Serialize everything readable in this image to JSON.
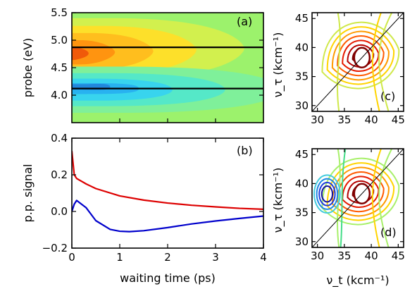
{
  "chart_data": [
    {
      "panel": "(a)",
      "type": "heatmap",
      "xlim": [
        0,
        4
      ],
      "ylim": [
        3.5,
        5.5
      ],
      "yticks": [
        "4.0",
        "4.5",
        "5.0",
        "5.5"
      ],
      "ylabel": "probe (eV)",
      "probe_lines": [
        4.87,
        4.12
      ],
      "colors": {
        "background": "#9cf26c",
        "positive_max": "#f05a0a",
        "negative_min": "#2288dd"
      }
    },
    {
      "panel": "(b)",
      "type": "line",
      "xlim": [
        0,
        4
      ],
      "ylim": [
        -0.2,
        0.4
      ],
      "xticks": [
        "0",
        "1",
        "2",
        "3",
        "4"
      ],
      "yticks": [
        "−0.2",
        "0.0",
        "0.2",
        "0.4"
      ],
      "xlabel": "waiting time (ps)",
      "ylabel": "p.p. signal",
      "series": [
        {
          "color": "#dd0000",
          "x": [
            0,
            0.05,
            0.1,
            0.3,
            0.5,
            1.0,
            1.5,
            2.0,
            2.5,
            3.0,
            3.5,
            4.0
          ],
          "y": [
            0.33,
            0.2,
            0.18,
            0.15,
            0.125,
            0.085,
            0.062,
            0.046,
            0.034,
            0.025,
            0.017,
            0.012
          ]
        },
        {
          "color": "#0000cc",
          "x": [
            0,
            0.05,
            0.1,
            0.3,
            0.5,
            0.8,
            1.0,
            1.2,
            1.5,
            2.0,
            2.5,
            3.0,
            3.5,
            4.0
          ],
          "y": [
            0.0,
            0.04,
            0.06,
            0.02,
            -0.05,
            -0.098,
            -0.108,
            -0.11,
            -0.105,
            -0.088,
            -0.068,
            -0.052,
            -0.038,
            -0.025
          ]
        }
      ]
    },
    {
      "panel": "(c)",
      "type": "contour",
      "xlim": [
        29,
        46
      ],
      "ylim": [
        29,
        46
      ],
      "xticks": [
        "30",
        "35",
        "40",
        "45"
      ],
      "yticks": [
        "30",
        "35",
        "40",
        "45"
      ],
      "ylabel": "ν_τ (kcm⁻¹)",
      "positive_peak": [
        38,
        38.5
      ],
      "colors": [
        "#cfe84a",
        "#ffd400",
        "#ff9a00",
        "#ff5a00",
        "#e61a00",
        "#b40000",
        "#800000"
      ]
    },
    {
      "panel": "(d)",
      "type": "contour",
      "xlim": [
        29,
        46
      ],
      "ylim": [
        29,
        46
      ],
      "xticks": [
        "30",
        "35",
        "40",
        "45"
      ],
      "yticks": [
        "30",
        "35",
        "40",
        "45"
      ],
      "xlabel": "ν_t (kcm⁻¹)",
      "ylabel": "ν_τ (kcm⁻¹)",
      "positive_peak": [
        38,
        38.5
      ],
      "negative_peak": [
        31.8,
        38.2
      ],
      "colors": [
        "#a8f06a",
        "#ffd400",
        "#ff9a00",
        "#ff5a00",
        "#e61a00",
        "#b40000",
        "#800000"
      ],
      "negative_colors": [
        "#44ccdd",
        "#1e88e5",
        "#1e3cdc",
        "#1010a0"
      ]
    }
  ]
}
